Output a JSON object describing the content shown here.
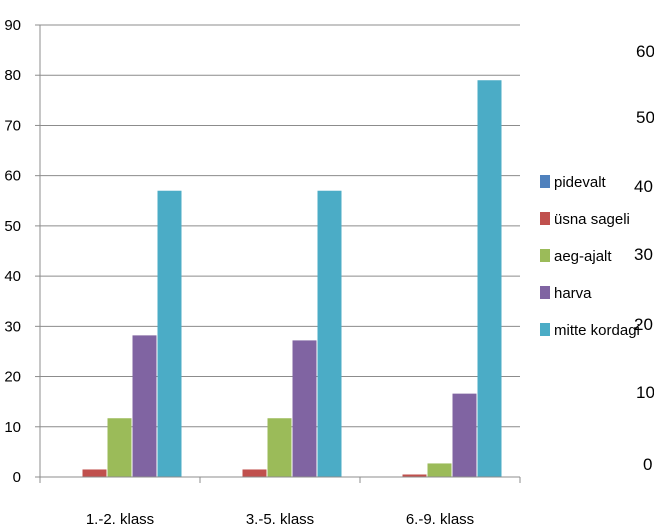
{
  "chart_data": {
    "type": "bar",
    "categories": [
      "1.-2. klass",
      "3.-5. klass",
      "6.-9. klass"
    ],
    "series": [
      {
        "name": "pidevalt",
        "color": "#4f81bd",
        "values": [
          0,
          0,
          0
        ]
      },
      {
        "name": "üsna sageli",
        "color": "#c0504d",
        "values": [
          1.5,
          1.5,
          0.5
        ]
      },
      {
        "name": "aeg-ajalt",
        "color": "#9bbb59",
        "values": [
          11.7,
          11.7,
          2.7
        ]
      },
      {
        "name": "harva",
        "color": "#8064a2",
        "values": [
          28.2,
          27.2,
          16.6
        ]
      },
      {
        "name": "mitte kordagi",
        "color": "#4bacc6",
        "values": [
          57,
          57,
          79
        ]
      }
    ],
    "ylim": [
      0,
      90
    ],
    "yticks": [
      0,
      10,
      20,
      30,
      40,
      50,
      60,
      70,
      80,
      90
    ],
    "grid": true,
    "legend": "right",
    "title": "",
    "xlabel": "",
    "ylabel": "",
    "second_chart_yticks_visible": [
      "60",
      "50",
      "40",
      "30",
      "20",
      "10",
      "0"
    ]
  }
}
